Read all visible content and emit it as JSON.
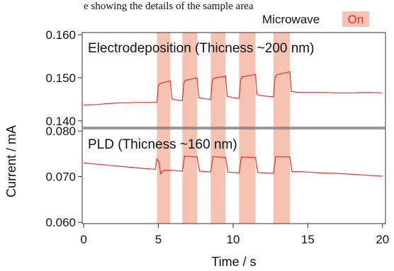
{
  "caption": "e showing the details of the sample area",
  "colors": {
    "line": "#e8322a",
    "shade": "#f6c3b3",
    "axis": "#333333",
    "on_text": "#e8322a"
  },
  "legend": {
    "label": "Microwave",
    "on_label": "On"
  },
  "chart_data": {
    "type": "line",
    "xlabel": "Time / s",
    "ylabel": "Current / mA",
    "x_axis": {
      "range": [
        -0.1,
        20.2
      ],
      "ticks": [
        0,
        5,
        10,
        15,
        20
      ],
      "tick_labels": [
        "0",
        "5",
        "10",
        "15",
        "20"
      ]
    },
    "microwave_on_intervals": [
      [
        4.9,
        5.8
      ],
      [
        6.6,
        7.6
      ],
      [
        8.5,
        9.5
      ],
      [
        10.4,
        11.5
      ],
      [
        12.7,
        13.8
      ]
    ],
    "panels": [
      {
        "label": "Electrodeposition (Thicness ~200 nm)",
        "ylim": [
          0.1385,
          0.1605
        ],
        "y_ticks": [
          0.14,
          0.15,
          0.16
        ],
        "y_tick_labels": [
          "0.140",
          "0.150",
          "0.160"
        ],
        "series": {
          "x": [
            0,
            1,
            1.5,
            2,
            2.5,
            3,
            3.5,
            4,
            4.5,
            4.9,
            5.0,
            5.1,
            5.8,
            5.9,
            6.3,
            6.6,
            6.7,
            6.8,
            7.6,
            7.7,
            8.2,
            8.5,
            8.6,
            8.7,
            9.5,
            9.6,
            10.0,
            10.4,
            10.5,
            10.6,
            11.5,
            11.6,
            12.0,
            12.7,
            12.8,
            12.9,
            13.8,
            13.9,
            14.5,
            15,
            16,
            17,
            18,
            19,
            20
          ],
          "y": [
            0.1437,
            0.1438,
            0.144,
            0.1441,
            0.1442,
            0.1442,
            0.1443,
            0.1443,
            0.1443,
            0.1443,
            0.1482,
            0.1487,
            0.1493,
            0.1451,
            0.1448,
            0.1447,
            0.1488,
            0.1494,
            0.15,
            0.1454,
            0.1451,
            0.145,
            0.1492,
            0.1499,
            0.1504,
            0.1457,
            0.1454,
            0.1452,
            0.1495,
            0.1502,
            0.1508,
            0.1461,
            0.1458,
            0.1456,
            0.15,
            0.1507,
            0.1514,
            0.1468,
            0.1466,
            0.1466,
            0.1466,
            0.1465,
            0.1465,
            0.1466,
            0.1465
          ]
        }
      },
      {
        "label": "PLD (Thicness ~160 nm)",
        "ylim": [
          0.0597,
          0.0805
        ],
        "y_ticks": [
          0.06,
          0.07,
          0.08
        ],
        "y_tick_labels": [
          "0.060",
          "0.070",
          "0.080"
        ],
        "series": {
          "x": [
            0,
            1,
            2,
            3,
            4,
            4.8,
            4.9,
            5.05,
            5.15,
            5.35,
            5.8,
            6.3,
            6.6,
            6.75,
            7.6,
            7.75,
            8.2,
            8.5,
            8.65,
            9.5,
            9.65,
            10.1,
            10.4,
            10.55,
            11.5,
            11.65,
            12.2,
            12.7,
            12.85,
            13.8,
            13.95,
            14.5,
            15,
            16,
            17,
            18,
            19,
            20
          ],
          "y": [
            0.073,
            0.0727,
            0.0724,
            0.0721,
            0.0718,
            0.0716,
            0.074,
            0.0731,
            0.0706,
            0.0714,
            0.0714,
            0.0713,
            0.0712,
            0.0745,
            0.0743,
            0.0712,
            0.0711,
            0.071,
            0.0744,
            0.0742,
            0.071,
            0.0709,
            0.0708,
            0.0743,
            0.0742,
            0.0709,
            0.0708,
            0.0707,
            0.0744,
            0.0743,
            0.0711,
            0.0711,
            0.071,
            0.0708,
            0.0707,
            0.0705,
            0.0703,
            0.0701
          ]
        }
      }
    ]
  }
}
